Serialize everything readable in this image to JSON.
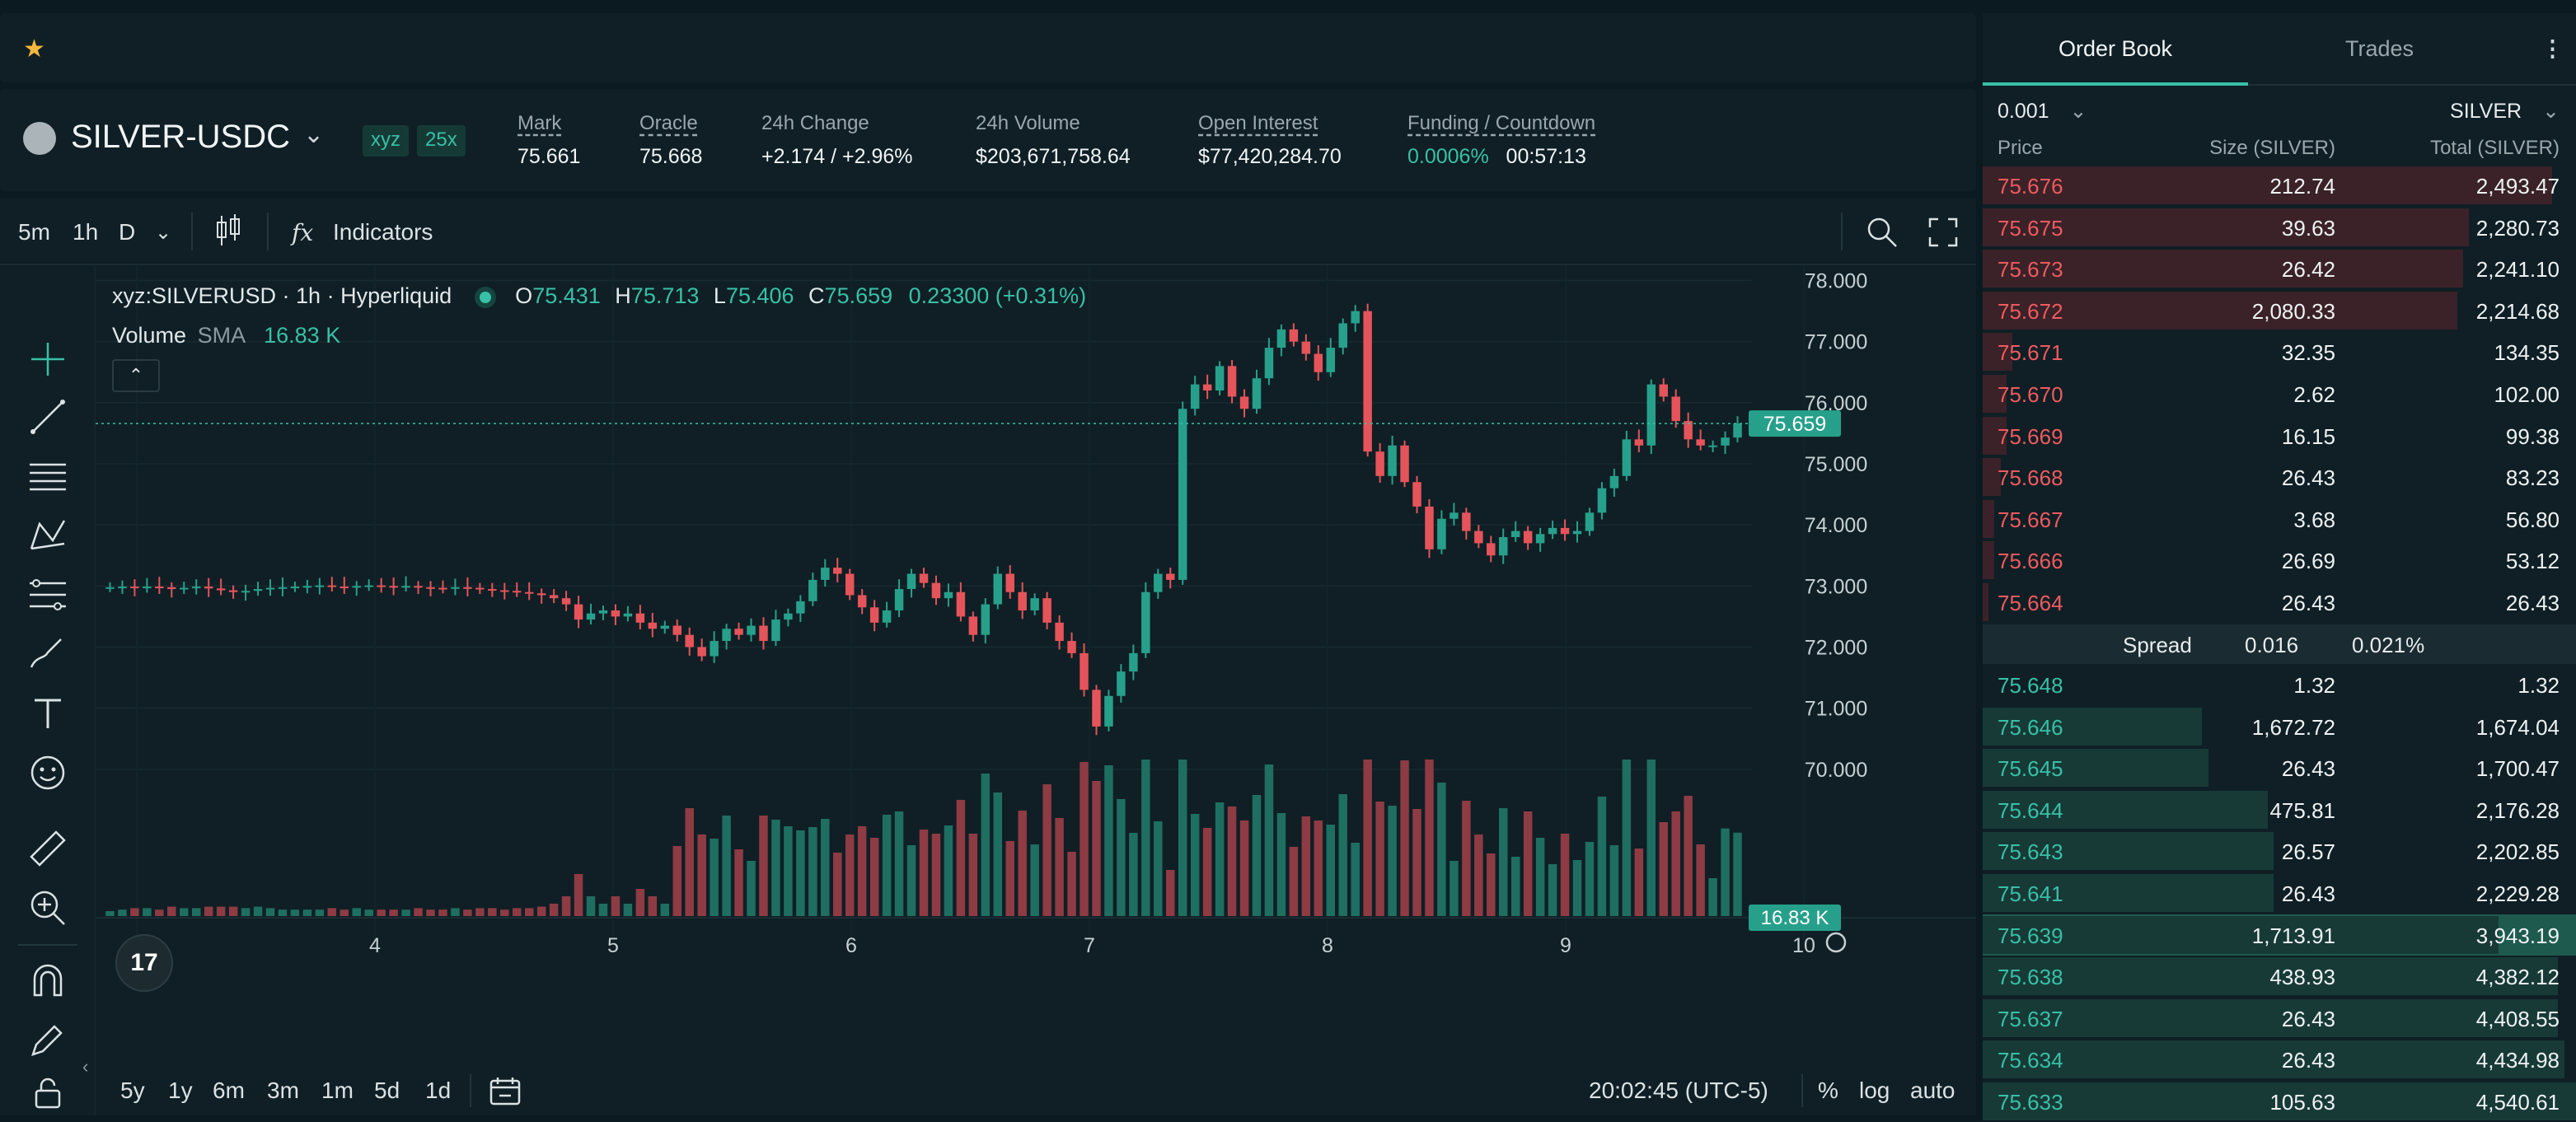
{
  "topbar": {
    "star": "★"
  },
  "market": {
    "pair": "SILVER-USDC",
    "badges": [
      "xyz",
      "25x"
    ],
    "stats": [
      {
        "label": "Mark",
        "value": "75.661"
      },
      {
        "label": "Oracle",
        "value": "75.668"
      },
      {
        "label": "24h Change",
        "value": "+2.174 / +2.96%"
      },
      {
        "label": "24h Volume",
        "value": "$203,671,758.64"
      },
      {
        "label": "Open Interest",
        "value": "$77,420,284.70"
      },
      {
        "label": "Funding / Countdown",
        "value": "0.0006%",
        "value2": "00:57:13"
      }
    ]
  },
  "toolbar": {
    "timeframes": [
      "5m",
      "1h",
      "D"
    ],
    "active_timeframe": "1h",
    "indicators_label": "Indicators",
    "fx_label": "fx"
  },
  "chart_legend": {
    "symbol": "xyz:SILVERUSD · 1h · Hyperliquid",
    "o_label": "O",
    "o": "75.431",
    "h_label": "H",
    "h": "75.713",
    "l_label": "L",
    "l": "75.406",
    "c_label": "C",
    "c": "75.659",
    "change": "0.23300 (+0.31%)",
    "volume_label": "Volume",
    "sma_label": "SMA",
    "volume_value": "16.83 K"
  },
  "chart_data": {
    "type": "candlestick",
    "y_axis_ticks": [
      "78.000",
      "77.000",
      "76.000",
      "75.000",
      "74.000",
      "73.000",
      "72.000",
      "71.000",
      "70.000"
    ],
    "ylim": [
      69.35,
      78.25
    ],
    "x_axis_ticks": [
      "3",
      "4",
      "5",
      "6",
      "7",
      "8",
      "9",
      "10"
    ],
    "current_price_label": "75.659",
    "current_volume_label": "16.83 K",
    "colors": {
      "up": "#27a08b",
      "down": "#e5545a",
      "vol_up": "#1f6e62",
      "vol_down": "#8e3b44"
    },
    "close_series": [
      72.98,
      72.99,
      72.97,
      72.99,
      72.98,
      72.95,
      72.97,
      72.99,
      72.96,
      72.93,
      72.9,
      72.92,
      72.95,
      72.97,
      72.98,
      72.99,
      73.0,
      73.01,
      72.99,
      72.98,
      73.0,
      73.01,
      73.0,
      72.99,
      73.0,
      72.98,
      72.97,
      72.96,
      72.98,
      72.97,
      72.95,
      72.93,
      72.92,
      72.9,
      72.88,
      72.85,
      72.8,
      72.7,
      72.45,
      72.55,
      72.6,
      72.5,
      72.55,
      72.4,
      72.3,
      72.35,
      72.2,
      72.0,
      71.85,
      72.1,
      72.3,
      72.2,
      72.35,
      72.1,
      72.45,
      72.55,
      72.75,
      73.1,
      73.3,
      73.2,
      72.85,
      72.65,
      72.4,
      72.6,
      72.95,
      73.2,
      73.05,
      72.8,
      72.9,
      72.5,
      72.2,
      72.7,
      73.2,
      72.9,
      72.6,
      72.8,
      72.4,
      72.1,
      71.9,
      71.3,
      70.7,
      71.2,
      71.6,
      71.9,
      72.9,
      73.2,
      73.1,
      75.9,
      76.3,
      76.2,
      76.6,
      76.1,
      75.9,
      76.4,
      76.9,
      77.2,
      77.0,
      76.8,
      76.5,
      76.9,
      77.3,
      77.5,
      75.2,
      74.8,
      75.3,
      74.7,
      74.3,
      73.6,
      74.1,
      74.2,
      73.9,
      73.7,
      73.5,
      73.8,
      73.9,
      73.7,
      73.85,
      73.95,
      73.85,
      73.9,
      74.2,
      74.6,
      74.8,
      75.4,
      75.3,
      76.3,
      76.1,
      75.7,
      75.4,
      75.3,
      75.3,
      75.43,
      75.659
    ],
    "volume_scale": "relative"
  },
  "bottombar": {
    "ranges": [
      "5y",
      "1y",
      "6m",
      "3m",
      "1m",
      "5d",
      "1d"
    ],
    "time": "20:02:45 (UTC-5)",
    "pct": "%",
    "log": "log",
    "auto": "auto"
  },
  "orderbook": {
    "tabs": [
      "Order Book",
      "Trades"
    ],
    "tick": "0.001",
    "unit": "SILVER",
    "headers": [
      "Price",
      "Size (SILVER)",
      "Total (SILVER)"
    ],
    "asks": [
      {
        "price": "75.676",
        "size": "212.74",
        "total": "2,493.47",
        "depth": 0.96
      },
      {
        "price": "75.675",
        "size": "39.63",
        "total": "2,280.73",
        "depth": 0.82
      },
      {
        "price": "75.673",
        "size": "26.42",
        "total": "2,241.10",
        "depth": 0.81
      },
      {
        "price": "75.672",
        "size": "2,080.33",
        "total": "2,214.68",
        "depth": 0.8
      },
      {
        "price": "75.671",
        "size": "32.35",
        "total": "134.35",
        "depth": 0.05
      },
      {
        "price": "75.670",
        "size": "2.62",
        "total": "102.00",
        "depth": 0.04
      },
      {
        "price": "75.669",
        "size": "16.15",
        "total": "99.38",
        "depth": 0.04
      },
      {
        "price": "75.668",
        "size": "26.43",
        "total": "83.23",
        "depth": 0.03
      },
      {
        "price": "75.667",
        "size": "3.68",
        "total": "56.80",
        "depth": 0.02
      },
      {
        "price": "75.666",
        "size": "26.69",
        "total": "53.12",
        "depth": 0.02
      },
      {
        "price": "75.664",
        "size": "26.43",
        "total": "26.43",
        "depth": 0.01
      }
    ],
    "spread": {
      "label": "Spread",
      "value": "0.016",
      "pct": "0.021%"
    },
    "bids": [
      {
        "price": "75.648",
        "size": "1.32",
        "total": "1.32",
        "depth": 0.0
      },
      {
        "price": "75.646",
        "size": "1,672.72",
        "total": "1,674.04",
        "depth": 0.37
      },
      {
        "price": "75.645",
        "size": "26.43",
        "total": "1,700.47",
        "depth": 0.38
      },
      {
        "price": "75.644",
        "size": "475.81",
        "total": "2,176.28",
        "depth": 0.48
      },
      {
        "price": "75.643",
        "size": "26.57",
        "total": "2,202.85",
        "depth": 0.49
      },
      {
        "price": "75.641",
        "size": "26.43",
        "total": "2,229.28",
        "depth": 0.49
      },
      {
        "price": "75.639",
        "size": "1,713.91",
        "total": "3,943.19",
        "depth": 0.87,
        "highlight": true
      },
      {
        "price": "75.638",
        "size": "438.93",
        "total": "4,382.12",
        "depth": 0.97
      },
      {
        "price": "75.637",
        "size": "26.43",
        "total": "4,408.55",
        "depth": 0.97
      },
      {
        "price": "75.634",
        "size": "26.43",
        "total": "4,434.98",
        "depth": 0.98
      },
      {
        "price": "75.633",
        "size": "105.63",
        "total": "4,540.61",
        "depth": 1.0
      }
    ]
  }
}
